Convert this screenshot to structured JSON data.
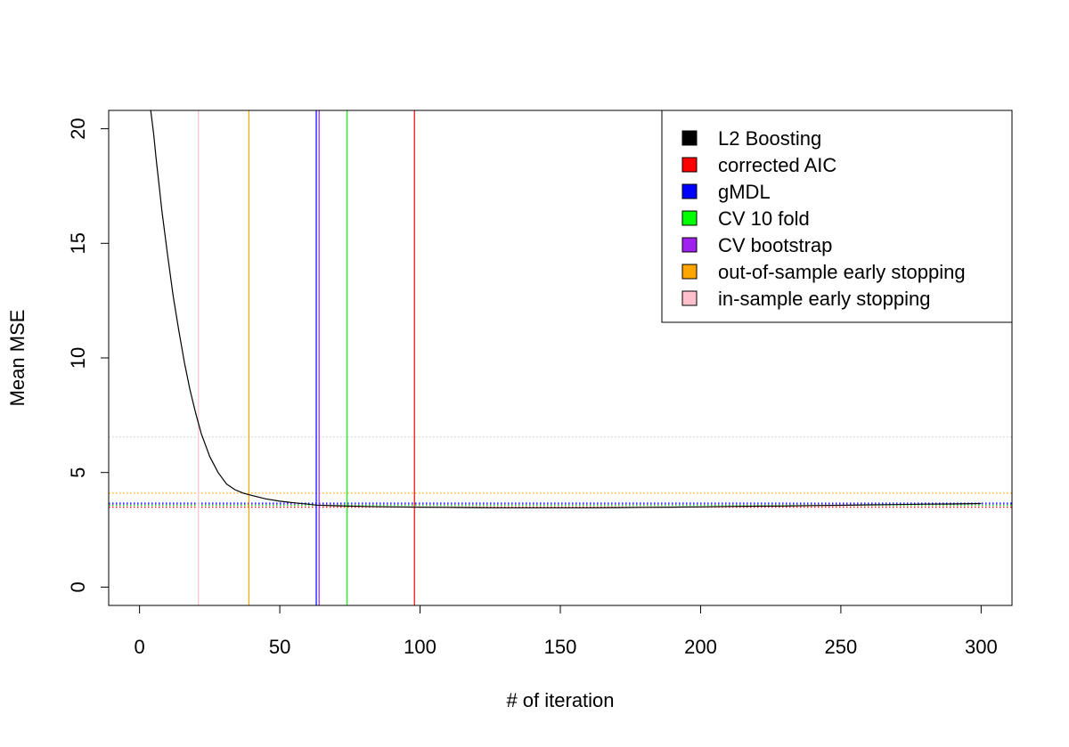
{
  "chart_data": {
    "type": "line",
    "title": "",
    "xlabel": "# of iteration",
    "ylabel": "Mean MSE",
    "xlim": [
      -11,
      311
    ],
    "ylim": [
      -0.8,
      20.8
    ],
    "x_ticks": [
      0,
      50,
      100,
      150,
      200,
      250,
      300
    ],
    "y_ticks": [
      0,
      5,
      10,
      15,
      20
    ],
    "grid": false,
    "legend_placement": "top-right",
    "series": [
      {
        "name": "L2 Boosting",
        "color": "#000000",
        "x": [
          4,
          5,
          6,
          7,
          8,
          10,
          12,
          14,
          16,
          18,
          20,
          22,
          25,
          28,
          31,
          34,
          37,
          40,
          45,
          50,
          55,
          60,
          63,
          70,
          80,
          90,
          100,
          110,
          120,
          130,
          140,
          150,
          160,
          170,
          180,
          190,
          200,
          210,
          220,
          230,
          240,
          250,
          260,
          270,
          280,
          290,
          300
        ],
        "y": [
          20.8,
          19.8,
          18.6,
          17.5,
          16.4,
          14.5,
          12.7,
          11.2,
          9.8,
          8.6,
          7.6,
          6.7,
          5.7,
          5.0,
          4.5,
          4.25,
          4.1,
          4.0,
          3.85,
          3.75,
          3.68,
          3.62,
          3.58,
          3.55,
          3.52,
          3.5,
          3.49,
          3.48,
          3.47,
          3.46,
          3.46,
          3.46,
          3.46,
          3.47,
          3.48,
          3.49,
          3.5,
          3.52,
          3.53,
          3.54,
          3.56,
          3.57,
          3.59,
          3.6,
          3.62,
          3.63,
          3.65
        ]
      }
    ],
    "vertical_lines": [
      {
        "name": "corrected AIC",
        "x": 98,
        "color": "#ff0000"
      },
      {
        "name": "gMDL",
        "x": 63,
        "color": "#0000ff"
      },
      {
        "name": "CV 10 fold",
        "x": 74,
        "color": "#00ff00"
      },
      {
        "name": "CV bootstrap",
        "x": 64,
        "color": "#a020f0"
      },
      {
        "name": "out-of-sample early stopping",
        "x": 39,
        "color": "#ffa500"
      },
      {
        "name": "in-sample early stopping",
        "x": 21,
        "color": "#ffc0cb"
      }
    ],
    "horizontal_lines": [
      {
        "y": 6.55,
        "color": "#d3d3d3",
        "style": "dotted"
      },
      {
        "y": 4.1,
        "color": "#ffa500",
        "style": "dotted"
      },
      {
        "y": 3.66,
        "color": "#0000ff",
        "style": "dotted"
      },
      {
        "y": 3.6,
        "color": "#a020f0",
        "style": "dotted"
      },
      {
        "y": 3.57,
        "color": "#00ff00",
        "style": "dotted"
      },
      {
        "y": 3.49,
        "color": "#ff0000",
        "style": "dotted"
      }
    ],
    "legend": [
      {
        "label": "L2 Boosting",
        "color": "#000000"
      },
      {
        "label": "corrected AIC",
        "color": "#ff0000"
      },
      {
        "label": "gMDL",
        "color": "#0000ff"
      },
      {
        "label": "CV 10 fold",
        "color": "#00ff00"
      },
      {
        "label": "CV bootstrap",
        "color": "#a020f0"
      },
      {
        "label": "out-of-sample early stopping",
        "color": "#ffa500"
      },
      {
        "label": "in-sample early stopping",
        "color": "#ffc0cb"
      }
    ]
  }
}
